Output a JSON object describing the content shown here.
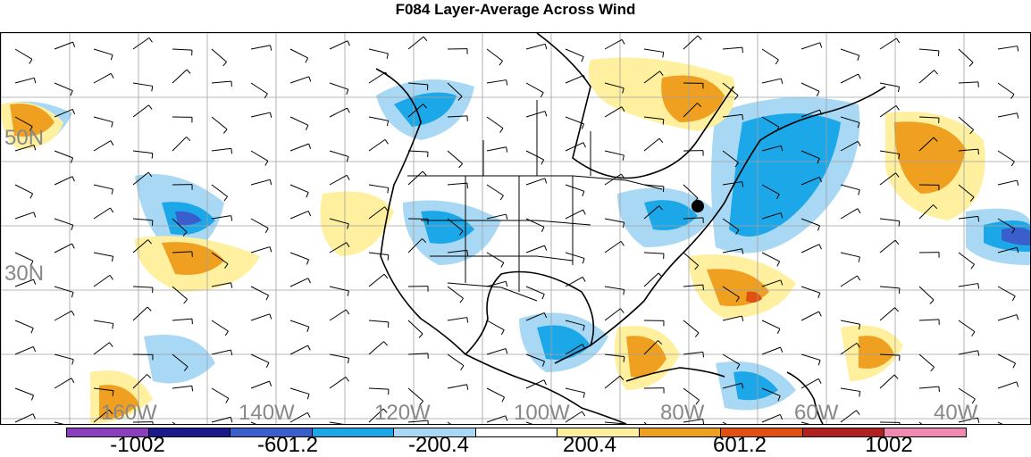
{
  "title": "F084 Layer-Average Across Wind",
  "map": {
    "lat_labels": [
      "50N",
      "30N"
    ],
    "lon_labels": [
      "160W",
      "140W",
      "120W",
      "100W",
      "80W",
      "60W",
      "40W"
    ],
    "point_marker": "black-dot"
  },
  "colorbar": {
    "colors": [
      "#8b3fbf",
      "#1a1a8c",
      "#3a5fcd",
      "#1ca8e8",
      "#a8d8f4",
      "#ffffff",
      "#fff0a0",
      "#f0a020",
      "#e05010",
      "#b02020",
      "#f08ab0"
    ],
    "labels": [
      "-1002",
      "-601.2",
      "-200.4",
      "200.4",
      "601.2",
      "1002"
    ]
  }
}
